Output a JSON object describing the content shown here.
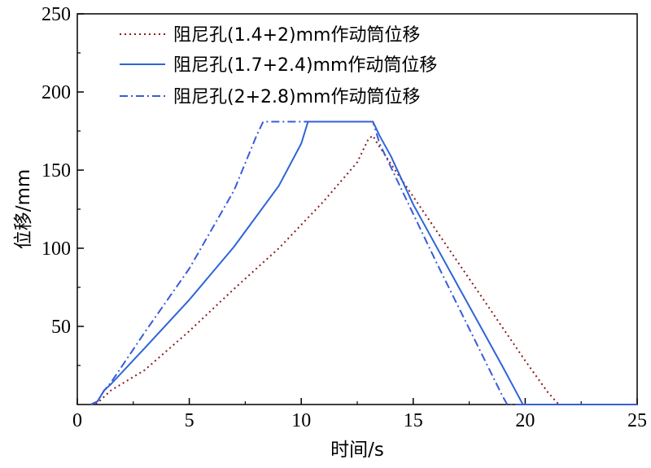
{
  "chart_data": {
    "type": "line",
    "title": "",
    "xlabel": "时间/s",
    "ylabel": "位移/mm",
    "xlim": [
      0,
      25
    ],
    "ylim": [
      0,
      250
    ],
    "xticks": [
      "0",
      "5",
      "10",
      "15",
      "20",
      "25"
    ],
    "yticks": [
      "50",
      "100",
      "150",
      "200",
      "250"
    ],
    "grid": false,
    "legend_position": "top-left",
    "series": [
      {
        "name": "阻尼孔(1.4+2)mm作动筒位移",
        "style": "dotted",
        "color": "#8b1a1a",
        "points": [
          [
            0.6,
            0
          ],
          [
            0.9,
            1
          ],
          [
            1.2,
            5
          ],
          [
            1.5,
            9
          ],
          [
            3,
            22
          ],
          [
            5,
            47
          ],
          [
            7,
            74
          ],
          [
            9,
            100
          ],
          [
            11,
            130
          ],
          [
            12.5,
            155
          ],
          [
            13,
            170
          ],
          [
            13.2,
            172
          ],
          [
            13.4,
            167
          ],
          [
            14,
            154
          ],
          [
            15,
            133
          ],
          [
            16,
            112
          ],
          [
            17,
            91
          ],
          [
            18,
            70
          ],
          [
            19,
            49
          ],
          [
            20,
            28
          ],
          [
            21,
            8
          ],
          [
            21.5,
            0
          ],
          [
            25,
            0
          ]
        ]
      },
      {
        "name": "阻尼孔(1.7+2.4)mm作动筒位移",
        "style": "solid",
        "color": "#2e64d8",
        "points": [
          [
            0.6,
            0
          ],
          [
            0.9,
            2
          ],
          [
            1.2,
            9
          ],
          [
            1.5,
            13
          ],
          [
            3,
            36
          ],
          [
            5,
            67
          ],
          [
            7,
            101
          ],
          [
            9,
            140
          ],
          [
            10,
            167
          ],
          [
            10.3,
            181
          ],
          [
            13.2,
            181
          ],
          [
            13.5,
            172
          ],
          [
            14,
            159
          ],
          [
            15,
            128
          ],
          [
            16,
            102
          ],
          [
            17,
            76
          ],
          [
            18,
            50
          ],
          [
            19,
            24
          ],
          [
            19.9,
            0
          ],
          [
            25,
            0
          ]
        ]
      },
      {
        "name": "阻尼孔(2+2.8)mm作动筒位移",
        "style": "dashdot",
        "color": "#3b5bdb",
        "points": [
          [
            0.6,
            0
          ],
          [
            0.9,
            2
          ],
          [
            1.2,
            9
          ],
          [
            1.5,
            14
          ],
          [
            3,
            46
          ],
          [
            5,
            87
          ],
          [
            7,
            137
          ],
          [
            8,
            172
          ],
          [
            8.3,
            181
          ],
          [
            13.2,
            181
          ],
          [
            13.5,
            167
          ],
          [
            14,
            152
          ],
          [
            15,
            122
          ],
          [
            16,
            92
          ],
          [
            17,
            63
          ],
          [
            18,
            34
          ],
          [
            19,
            5
          ],
          [
            19.2,
            0
          ],
          [
            25,
            0
          ]
        ]
      }
    ]
  }
}
